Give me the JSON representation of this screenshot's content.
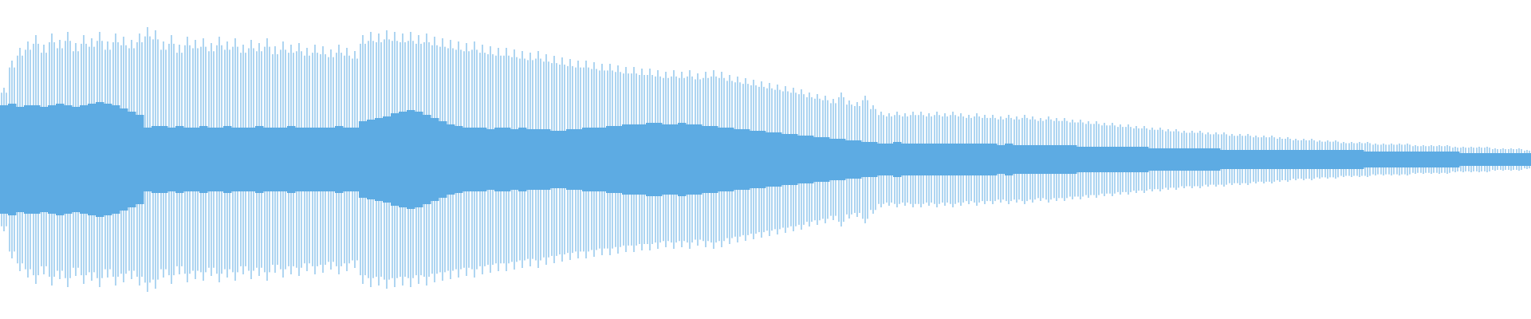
{
  "chart_data": {
    "type": "waveform",
    "ylim": [
      -1,
      1
    ],
    "series": [
      {
        "color": "#5dabe3",
        "values": [
          0.45,
          0.62,
          0.7,
          0.74,
          0.78,
          0.72,
          0.79,
          0.75,
          0.8,
          0.73,
          0.78,
          0.76,
          0.8,
          0.74,
          0.79,
          0.77,
          0.75,
          0.79,
          0.83,
          0.81,
          0.74,
          0.78,
          0.72,
          0.77,
          0.75,
          0.76,
          0.73,
          0.77,
          0.74,
          0.76,
          0.72,
          0.75,
          0.73,
          0.76,
          0.71,
          0.74,
          0.72,
          0.73,
          0.7,
          0.72,
          0.71,
          0.69,
          0.72,
          0.7,
          0.68,
          0.78,
          0.8,
          0.79,
          0.81,
          0.8,
          0.79,
          0.8,
          0.78,
          0.79,
          0.77,
          0.76,
          0.75,
          0.74,
          0.73,
          0.74,
          0.72,
          0.71,
          0.7,
          0.7,
          0.69,
          0.68,
          0.67,
          0.68,
          0.66,
          0.65,
          0.64,
          0.63,
          0.62,
          0.62,
          0.61,
          0.6,
          0.6,
          0.59,
          0.58,
          0.58,
          0.57,
          0.57,
          0.56,
          0.55,
          0.56,
          0.55,
          0.56,
          0.54,
          0.55,
          0.56,
          0.55,
          0.53,
          0.52,
          0.51,
          0.5,
          0.49,
          0.48,
          0.47,
          0.46,
          0.45,
          0.44,
          0.42,
          0.41,
          0.4,
          0.38,
          0.42,
          0.37,
          0.36,
          0.4,
          0.34,
          0.3,
          0.29,
          0.3,
          0.29,
          0.3,
          0.3,
          0.29,
          0.3,
          0.29,
          0.3,
          0.29,
          0.28,
          0.29,
          0.28,
          0.28,
          0.27,
          0.28,
          0.27,
          0.28,
          0.27,
          0.26,
          0.27,
          0.26,
          0.26,
          0.25,
          0.25,
          0.24,
          0.24,
          0.23,
          0.23,
          0.22,
          0.22,
          0.21,
          0.21,
          0.2,
          0.2,
          0.19,
          0.19,
          0.18,
          0.18,
          0.18,
          0.17,
          0.17,
          0.17,
          0.16,
          0.16,
          0.16,
          0.15,
          0.15,
          0.15,
          0.14,
          0.14,
          0.13,
          0.13,
          0.13,
          0.12,
          0.12,
          0.12,
          0.11,
          0.11,
          0.11,
          0.11,
          0.1,
          0.1,
          0.1,
          0.1,
          0.1,
          0.09,
          0.09,
          0.09,
          0.09,
          0.09,
          0.08,
          0.08,
          0.08,
          0.08,
          0.08,
          0.07,
          0.07,
          0.07,
          0.07,
          0.06
        ]
      },
      {
        "color": "#5dabe3",
        "values": [
          0.34,
          0.35,
          0.33,
          0.34,
          0.34,
          0.33,
          0.34,
          0.35,
          0.34,
          0.33,
          0.34,
          0.35,
          0.36,
          0.35,
          0.34,
          0.32,
          0.3,
          0.28,
          0.2,
          0.21,
          0.21,
          0.2,
          0.21,
          0.2,
          0.2,
          0.21,
          0.2,
          0.2,
          0.21,
          0.2,
          0.2,
          0.2,
          0.21,
          0.2,
          0.2,
          0.2,
          0.21,
          0.2,
          0.2,
          0.2,
          0.2,
          0.2,
          0.21,
          0.2,
          0.2,
          0.24,
          0.25,
          0.26,
          0.27,
          0.29,
          0.3,
          0.31,
          0.3,
          0.28,
          0.26,
          0.24,
          0.22,
          0.21,
          0.2,
          0.2,
          0.2,
          0.19,
          0.2,
          0.2,
          0.19,
          0.2,
          0.19,
          0.19,
          0.19,
          0.18,
          0.18,
          0.19,
          0.19,
          0.2,
          0.2,
          0.2,
          0.21,
          0.21,
          0.22,
          0.22,
          0.22,
          0.23,
          0.23,
          0.22,
          0.22,
          0.23,
          0.22,
          0.22,
          0.21,
          0.21,
          0.2,
          0.2,
          0.19,
          0.19,
          0.18,
          0.18,
          0.17,
          0.17,
          0.16,
          0.16,
          0.15,
          0.15,
          0.14,
          0.14,
          0.13,
          0.13,
          0.12,
          0.12,
          0.11,
          0.11,
          0.1,
          0.1,
          0.11,
          0.1,
          0.1,
          0.1,
          0.1,
          0.1,
          0.1,
          0.1,
          0.1,
          0.1,
          0.1,
          0.1,
          0.1,
          0.09,
          0.1,
          0.09,
          0.09,
          0.09,
          0.09,
          0.09,
          0.09,
          0.09,
          0.09,
          0.08,
          0.08,
          0.08,
          0.08,
          0.08,
          0.08,
          0.08,
          0.08,
          0.08,
          0.07,
          0.07,
          0.07,
          0.07,
          0.07,
          0.07,
          0.07,
          0.07,
          0.07,
          0.06,
          0.06,
          0.06,
          0.06,
          0.06,
          0.06,
          0.06,
          0.06,
          0.06,
          0.06,
          0.06,
          0.06,
          0.06,
          0.06,
          0.06,
          0.06,
          0.06,
          0.06,
          0.05,
          0.05,
          0.05,
          0.05,
          0.05,
          0.05,
          0.05,
          0.05,
          0.05,
          0.05,
          0.05,
          0.05,
          0.04,
          0.04,
          0.04,
          0.04,
          0.04,
          0.04,
          0.04,
          0.04,
          0.04,
          0.04
        ]
      }
    ]
  }
}
